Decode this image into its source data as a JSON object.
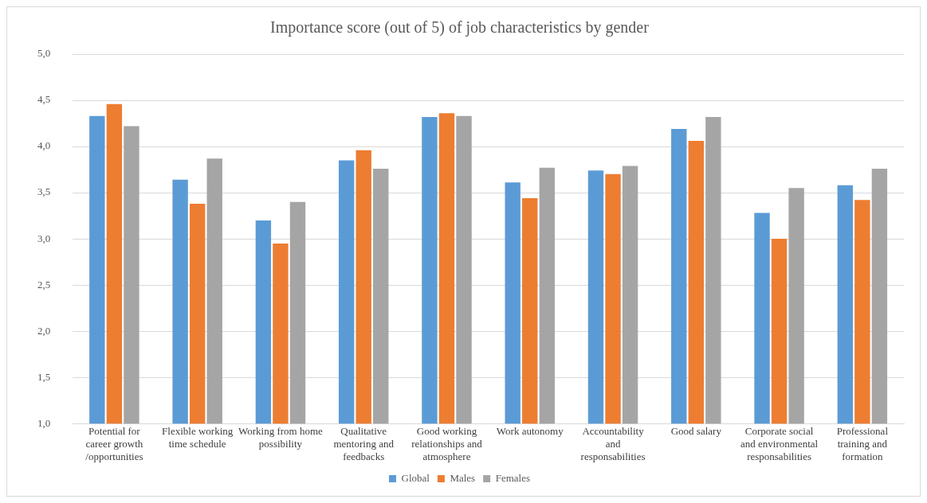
{
  "chart_data": {
    "type": "bar",
    "title": "Importance score (out of 5) of job characteristics by gender",
    "categories": [
      "Potential for career growth /opportunities",
      "Flexible working time schedule",
      "Working from home possibility",
      "Qualitative mentoring and feedbacks",
      "Good working relationships and atmosphere",
      "Work autonomy",
      "Accountability and responsabilities",
      "Good salary",
      "Corporate social and environmental responsabilities",
      "Professional training and formation"
    ],
    "series": [
      {
        "name": "Global",
        "color": "#5b9bd5",
        "values": [
          4.33,
          3.64,
          3.2,
          3.85,
          4.32,
          3.61,
          3.74,
          4.19,
          3.28,
          3.58
        ]
      },
      {
        "name": "Males",
        "color": "#ed7d31",
        "values": [
          4.46,
          3.38,
          2.95,
          3.96,
          4.36,
          3.44,
          3.7,
          4.06,
          3.0,
          3.42
        ]
      },
      {
        "name": "Females",
        "color": "#a5a5a5",
        "values": [
          4.22,
          3.87,
          3.4,
          3.76,
          4.33,
          3.77,
          3.79,
          4.32,
          3.55,
          3.76
        ]
      }
    ],
    "ylim": [
      1,
      5
    ],
    "yticks": [
      {
        "value": 1,
        "label": "1,0"
      },
      {
        "value": 1.5,
        "label": "1,5"
      },
      {
        "value": 2,
        "label": "2,0"
      },
      {
        "value": 2.5,
        "label": "2,5"
      },
      {
        "value": 3,
        "label": "3,0"
      },
      {
        "value": 3.5,
        "label": "3,5"
      },
      {
        "value": 4,
        "label": "4,0"
      },
      {
        "value": 4.5,
        "label": "4,5"
      },
      {
        "value": 5,
        "label": "5,0"
      }
    ],
    "grid": "y",
    "legend": "bottom"
  }
}
